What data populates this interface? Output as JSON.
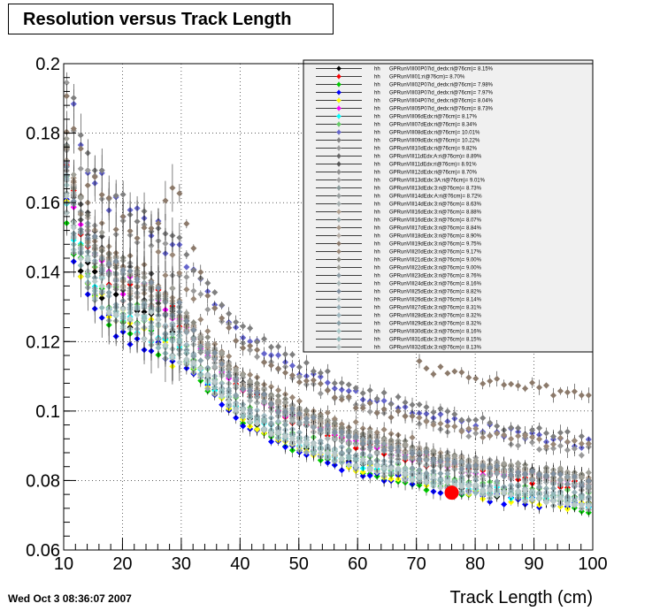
{
  "title": "Resolution versus Track Length",
  "timestamp": "Wed Oct  3 08:36:07 2007",
  "chart_data": {
    "type": "scatter",
    "title": "Resolution versus Track Length",
    "xlabel": "Track Length (cm)",
    "ylabel": "",
    "xlim": [
      10,
      100
    ],
    "ylim": [
      0.06,
      0.2
    ],
    "x_ticks": [
      10,
      20,
      30,
      40,
      50,
      60,
      70,
      80,
      90,
      100
    ],
    "x_tick_labels": [
      "10",
      "20",
      "30",
      "40",
      "50",
      "60",
      "70",
      "80",
      "90",
      "100"
    ],
    "y_ticks": [
      0.06,
      0.08,
      0.1,
      0.12,
      0.14,
      0.16,
      0.18,
      0.2
    ],
    "y_tick_labels": [
      "0.06",
      "0.08",
      "0.1",
      "0.12",
      "0.14",
      "0.16",
      "0.18",
      "0.2"
    ],
    "grid": true,
    "legend_position": "top-right",
    "reference_point": {
      "x": 76,
      "y": 0.0765,
      "color": "#ff0000"
    },
    "series": [
      {
        "name": "GPRunVIII00P07id_dedx:ri@76cm)= 8.15%",
        "label": "GPRunVIII00P07id_dedx:ri@76cm)= 8.15%",
        "color": "#000000",
        "scale": 1.0,
        "bump": 0
      },
      {
        "name": "GPRunVIII01:ri@76cm)= 8.70%",
        "label": "GPRunVIII01:ri@76cm)= 8.70%",
        "color": "#ff0000",
        "scale": 1.065,
        "bump": 0
      },
      {
        "name": "GPRunVIII02P07id_dedx:ri@76cm)= 7.98%",
        "label": "GPRunVIII02P07id_dedx:ri@76cm)= 7.98%",
        "color": "#00cc00",
        "scale": 0.98,
        "bump": 0
      },
      {
        "name": "GPRunVIII03P07id_dedx:ri@76cm)= 7.97%",
        "label": "GPRunVIII03P07id_dedx:ri@76cm)= 7.97%",
        "color": "#0000ff",
        "scale": 0.975,
        "bump": 0
      },
      {
        "name": "GPRunVIII04P07id_dedx:ri@76cm)= 8.04%",
        "label": "GPRunVIII04P07id_dedx:ri@76cm)= 8.04%",
        "color": "#ffff00",
        "scale": 0.985,
        "bump": 0
      },
      {
        "name": "GPRunVIII05P07id_dedx:ri@76cm)= 8.73%",
        "label": "GPRunVIII05P07id_dedx:ri@76cm)= 8.73%",
        "color": "#ff00ff",
        "scale": 1.07,
        "bump": 0
      },
      {
        "name": "GPRunVIII06dEdx:ri@76cm)= 8.17%",
        "label": "GPRunVIII06dEdx:ri@76cm)= 8.17%",
        "color": "#00ffff",
        "scale": 1.0,
        "bump": 0
      },
      {
        "name": "GPRunVIII07dEdx:ri@76cm)= 8.34%",
        "label": "GPRunVIII07dEdx:ri@76cm)= 8.34%",
        "color": "#66cc66",
        "scale": 1.02,
        "bump": 0
      },
      {
        "name": "GPRunVIII08dEdx:ri@76cm)= 10.01%",
        "label": "GPRunVIII08dEdx:ri@76cm)= 10.01%",
        "color": "#6666cc",
        "scale": 1.23,
        "bump": 0
      },
      {
        "name": "GPRunVIII09dEdx:ri@76cm)= 10.22%",
        "label": "GPRunVIII09dEdx:ri@76cm)= 10.22%",
        "color": "#7f7f7f",
        "scale": 1.25,
        "bump": 0
      },
      {
        "name": "GPRunVIII10dEdx:ri@76cm)= 9.82%",
        "label": "GPRunVIII10dEdx:ri@76cm)= 9.82%",
        "color": "#999999",
        "scale": 1.2,
        "bump": 0
      },
      {
        "name": "GPRunVIII11dEdx:A:ri@76cm)= 8.89%",
        "label": "GPRunVIII11dEdx:A:ri@76cm)= 8.89%",
        "color": "#666666",
        "scale": 1.09,
        "bump": 0
      },
      {
        "name": "GPRunVIII11dEdx:ri@76cm)= 8.91%",
        "label": "GPRunVIII11dEdx:ri@76cm)= 8.91%",
        "color": "#555555",
        "scale": 1.09,
        "bump": 0
      },
      {
        "name": "GPRunVIII12dEdx:ri@76cm)= 8.70%",
        "label": "GPRunVIII12dEdx:ri@76cm)= 8.70%",
        "color": "#8c8c8c",
        "scale": 1.065,
        "bump": 0
      },
      {
        "name": "GPRunVIII13dEdx:3A:ri@76cm)= 9.01%",
        "label": "GPRunVIII13dEdx:3A:ri@76cm)= 9.01%",
        "color": "#a0a0a0",
        "scale": 1.1,
        "bump": 0
      },
      {
        "name": "GPRunVIII13dEdx:3:ri@76cm)= 8.73%",
        "label": "GPRunVIII13dEdx:3:ri@76cm)= 8.73%",
        "color": "#8a9a9a",
        "scale": 1.07,
        "bump": 0
      },
      {
        "name": "GPRunVIII14dEdx:A:ri@76cm)= 8.72%",
        "label": "GPRunVIII14dEdx:A:ri@76cm)= 8.72%",
        "color": "#9aa0a0",
        "scale": 1.07,
        "bump": 0
      },
      {
        "name": "GPRunVIII14dEdx:3:ri@76cm)= 8.63%",
        "label": "GPRunVIII14dEdx:3:ri@76cm)= 8.63%",
        "color": "#a6b0b0",
        "scale": 1.06,
        "bump": 0
      },
      {
        "name": "GPRunVIII16dEdx:3:ri@76cm)= 8.88%",
        "label": "GPRunVIII16dEdx:3:ri@76cm)= 8.88%",
        "color": "#b0a090",
        "scale": 1.09,
        "bump": 0
      },
      {
        "name": "GPRunVIII16dEdx:3:ri@76cm)= 8.07%",
        "label": "GPRunVIII16dEdx:3:ri@76cm)= 8.07%",
        "color": "#98a8a8",
        "scale": 0.99,
        "bump": 0
      },
      {
        "name": "GPRunVIII17dEdx:3:ri@76cm)= 8.84%",
        "label": "GPRunVIII17dEdx:3:ri@76cm)= 8.84%",
        "color": "#a89888",
        "scale": 1.085,
        "bump": 0
      },
      {
        "name": "GPRunVIII18dEdx:3:ri@76cm)= 8.90%",
        "label": "GPRunVIII18dEdx:3:ri@76cm)= 8.90%",
        "color": "#b8b0a8",
        "scale": 1.09,
        "bump": 0
      },
      {
        "name": "GPRunVIII19dEdx:3:ri@76cm)= 9.75%",
        "label": "GPRunVIII19dEdx:3:ri@76cm)= 9.75%",
        "color": "#8c7a6b",
        "scale": 1.2,
        "bump": 0.018
      },
      {
        "name": "GPRunVIII20dEdx:3:ri@76cm)= 9.17%",
        "label": "GPRunVIII20dEdx:3:ri@76cm)= 9.17%",
        "color": "#9a8878",
        "scale": 1.12,
        "bump": 0.008
      },
      {
        "name": "GPRunVIII21dEdx:3:ri@76cm)= 9.00%",
        "label": "GPRunVIII21dEdx:3:ri@76cm)= 9.00%",
        "color": "#8a8a80",
        "scale": 1.1,
        "bump": 0
      },
      {
        "name": "GPRunVIII22dEdx:3:ri@76cm)= 9.00%",
        "label": "GPRunVIII22dEdx:3:ri@76cm)= 9.00%",
        "color": "#a0a098",
        "scale": 1.1,
        "bump": 0
      },
      {
        "name": "GPRunVIII23dEdx:3:ri@76cm)= 8.76%",
        "label": "GPRunVIII23dEdx:3:ri@76cm)= 8.76%",
        "color": "#90a0a8",
        "scale": 1.075,
        "bump": 0
      },
      {
        "name": "GPRunVIII24dEdx:3:ri@76cm)= 8.16%",
        "label": "GPRunVIII24dEdx:3:ri@76cm)= 8.16%",
        "color": "#a8b8b8",
        "scale": 1.0,
        "bump": 0
      },
      {
        "name": "GPRunVIII25dEdx:3:ri@76cm)= 8.82%",
        "label": "GPRunVIII25dEdx:3:ri@76cm)= 8.82%",
        "color": "#7f8f9f",
        "scale": 1.08,
        "bump": 0
      },
      {
        "name": "GPRunVIII26dEdx:3:ri@76cm)= 8.14%",
        "label": "GPRunVIII26dEdx:3:ri@76cm)= 8.14%",
        "color": "#b0c0c0",
        "scale": 1.0,
        "bump": 0
      },
      {
        "name": "GPRunVIII27dEdx:3:ri@76cm)= 8.31%",
        "label": "GPRunVIII27dEdx:3:ri@76cm)= 8.31%",
        "color": "#98b0b8",
        "scale": 1.02,
        "bump": 0
      },
      {
        "name": "GPRunVIII28dEdx:3:ri@76cm)= 8.32%",
        "label": "GPRunVIII28dEdx:3:ri@76cm)= 8.32%",
        "color": "#a0b8c0",
        "scale": 1.02,
        "bump": 0
      },
      {
        "name": "GPRunVIII29dEdx:3:ri@76cm)= 8.32%",
        "label": "GPRunVIII29dEdx:3:ri@76cm)= 8.32%",
        "color": "#88a0a8",
        "scale": 1.02,
        "bump": 0
      },
      {
        "name": "GPRunVIII30dEdx:3:ri@76cm)= 8.16%",
        "label": "GPRunVIII30dEdx:3:ri@76cm)= 8.16%",
        "color": "#a8c8c8",
        "scale": 1.0,
        "bump": 0
      },
      {
        "name": "GPRunVIII31dEdx:3:ri@76cm)= 8.15%",
        "label": "GPRunVIII31dEdx:3:ri@76cm)= 8.15%",
        "color": "#90b8b8",
        "scale": 1.0,
        "bump": 0
      },
      {
        "name": "GPRunVIII32dEdx:3:ri@76cm)= 8.13%",
        "label": "GPRunVIII32dEdx:3:ri@76cm)= 8.13%",
        "color": "#b8c8c8",
        "scale": 1.0,
        "bump": 0
      }
    ],
    "base_curve": {
      "x": [
        10,
        12,
        15,
        18,
        20,
        25,
        30,
        35,
        40,
        45,
        50,
        55,
        60,
        65,
        70,
        75,
        80,
        85,
        90,
        95,
        100
      ],
      "y": [
        0.165,
        0.148,
        0.137,
        0.131,
        0.127,
        0.124,
        0.117,
        0.108,
        0.1,
        0.095,
        0.091,
        0.088,
        0.085,
        0.083,
        0.081,
        0.079,
        0.0775,
        0.0765,
        0.0755,
        0.0745,
        0.0735
      ]
    }
  }
}
